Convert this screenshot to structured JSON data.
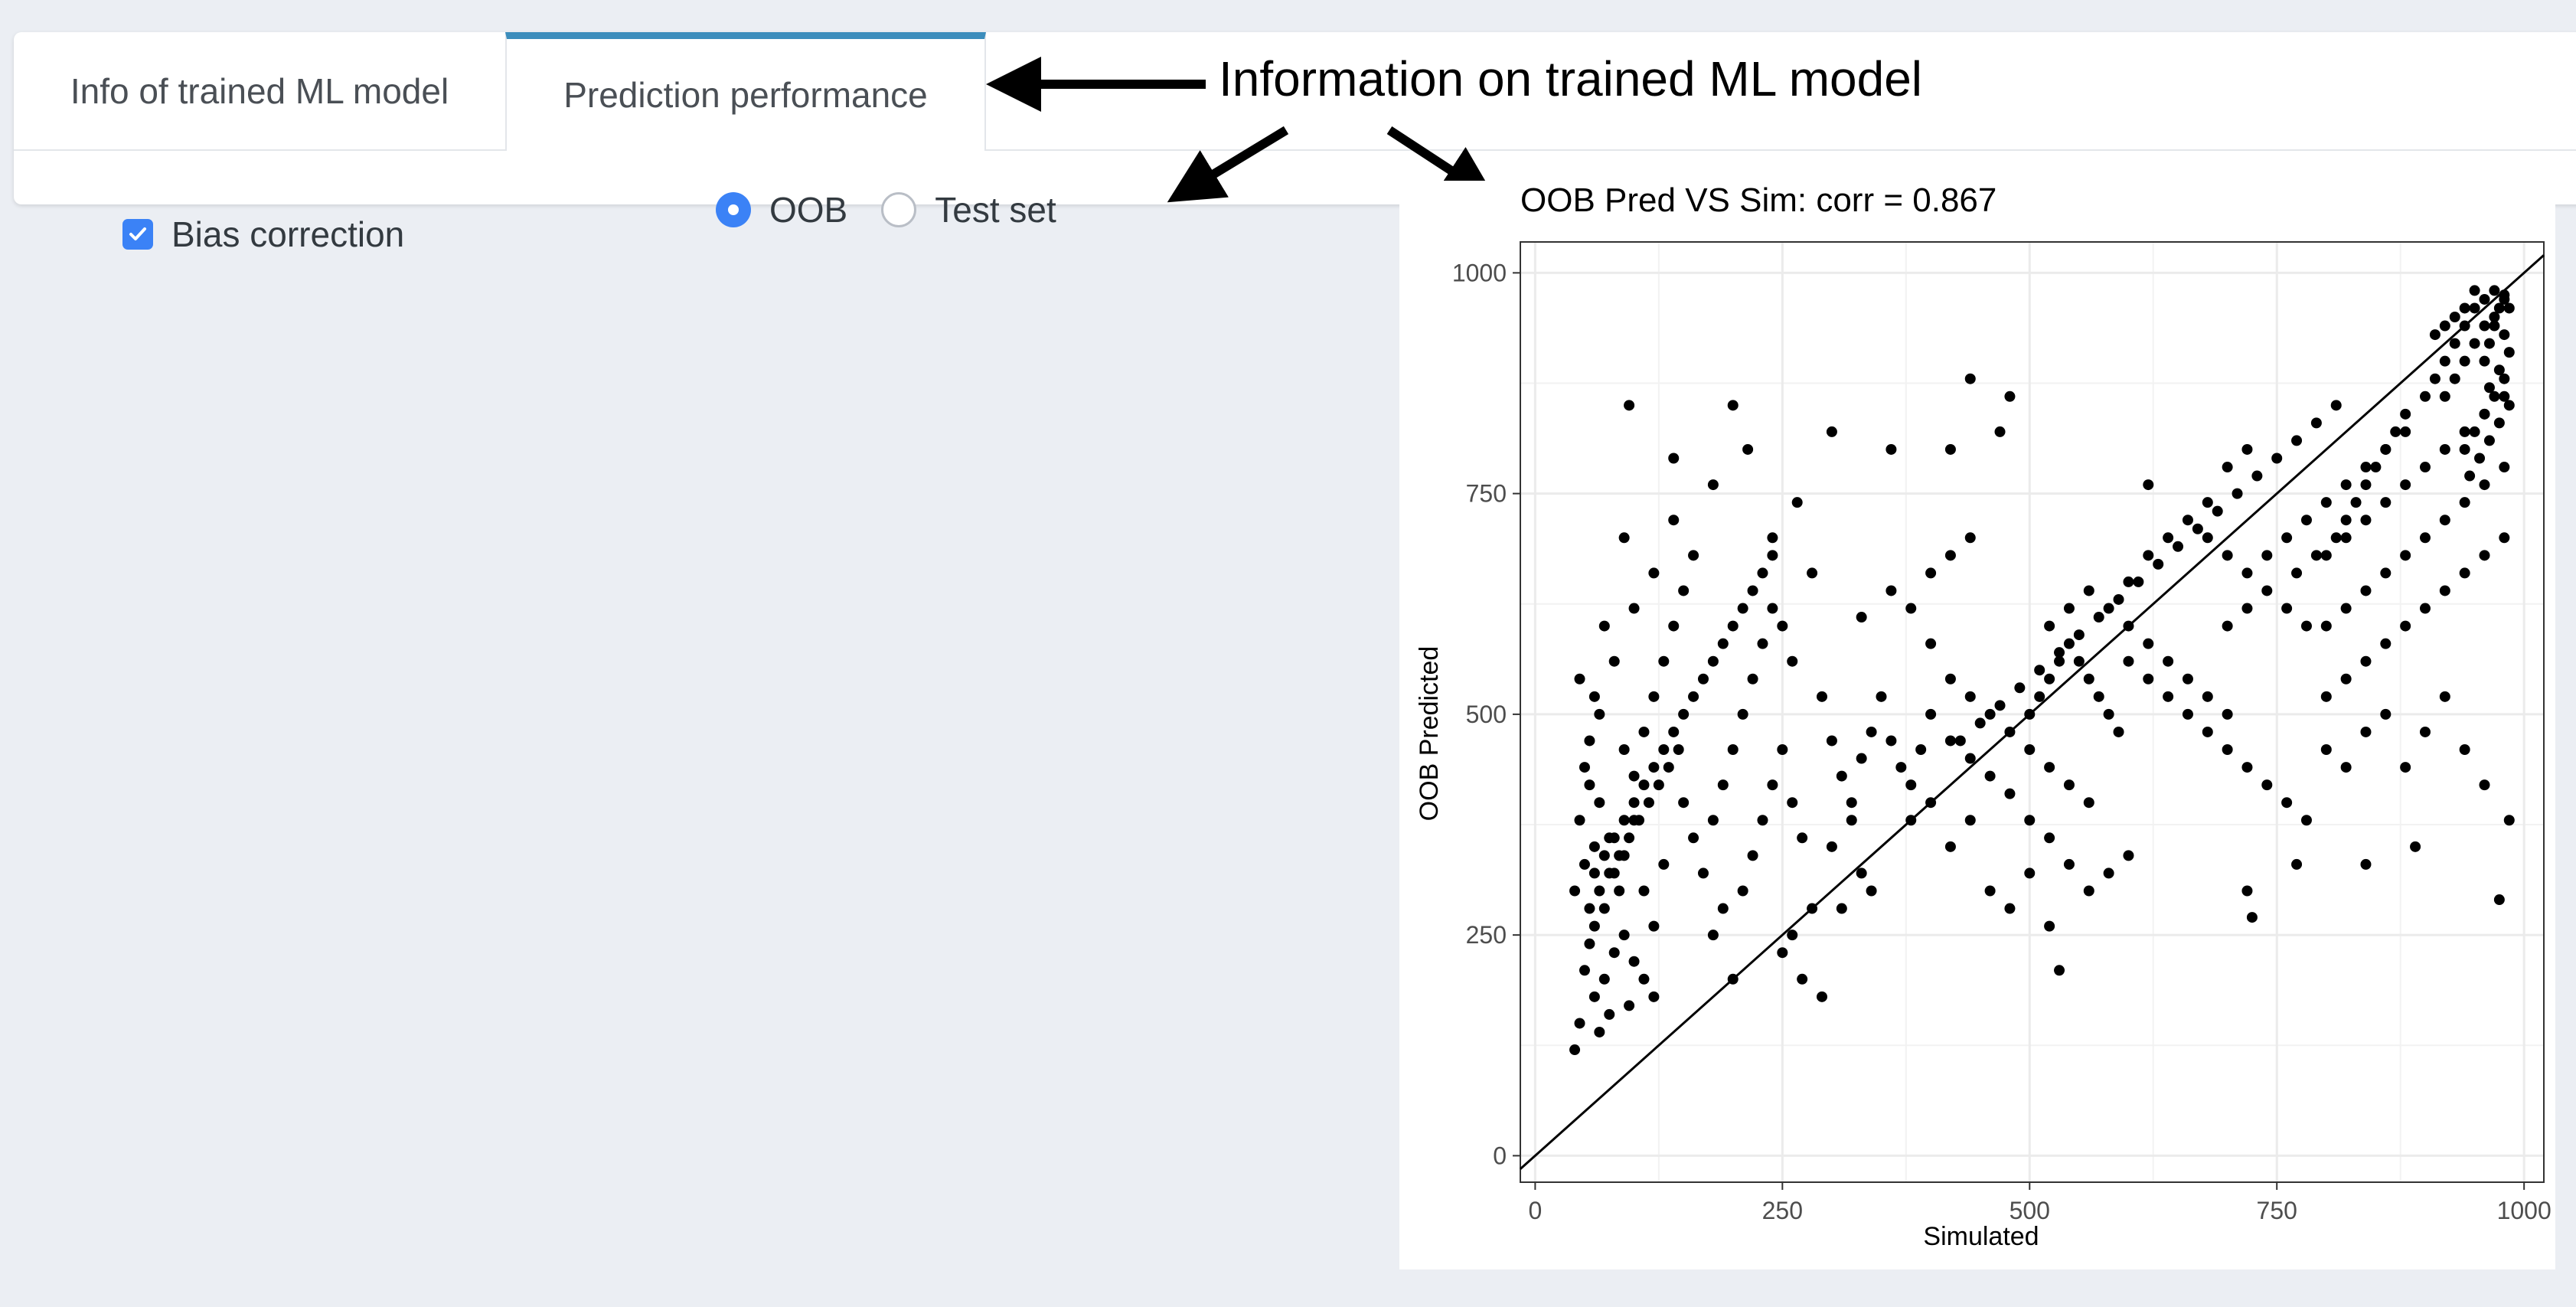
{
  "tabs": [
    {
      "label": "Info of trained ML model",
      "active": false
    },
    {
      "label": "Prediction performance",
      "active": true
    }
  ],
  "controls": {
    "bias_correction": {
      "label": "Bias correction",
      "checked": true
    },
    "radio": [
      {
        "label": "OOB",
        "selected": true
      },
      {
        "label": "Test set",
        "selected": false
      }
    ]
  },
  "annotation": {
    "text": "Information on trained ML model"
  },
  "colors": {
    "accent": "#3c8dbc",
    "control": "#3b82f6",
    "background": "#ebeef3"
  },
  "chart_data": {
    "type": "scatter",
    "title": "OOB Pred VS Sim: corr = 0.867",
    "xlabel": "Simulated",
    "ylabel": "OOB Predicted",
    "xlim": [
      -15,
      1020
    ],
    "ylim": [
      -30,
      1035
    ],
    "xticks": [
      0,
      250,
      500,
      750,
      1000
    ],
    "yticks": [
      0,
      250,
      500,
      750,
      1000
    ],
    "grid": true,
    "reference_line": "y = x",
    "point_color": "#000000",
    "points": [
      [
        40,
        120
      ],
      [
        45,
        150
      ],
      [
        50,
        210
      ],
      [
        55,
        240
      ],
      [
        60,
        260
      ],
      [
        40,
        300
      ],
      [
        50,
        330
      ],
      [
        60,
        350
      ],
      [
        70,
        280
      ],
      [
        80,
        320
      ],
      [
        45,
        380
      ],
      [
        55,
        420
      ],
      [
        65,
        400
      ],
      [
        75,
        360
      ],
      [
        85,
        300
      ],
      [
        90,
        340
      ],
      [
        100,
        380
      ],
      [
        110,
        300
      ],
      [
        120,
        260
      ],
      [
        130,
        330
      ],
      [
        60,
        180
      ],
      [
        70,
        200
      ],
      [
        80,
        230
      ],
      [
        90,
        250
      ],
      [
        100,
        220
      ],
      [
        110,
        200
      ],
      [
        120,
        180
      ],
      [
        95,
        170
      ],
      [
        75,
        160
      ],
      [
        65,
        140
      ],
      [
        50,
        440
      ],
      [
        55,
        470
      ],
      [
        60,
        520
      ],
      [
        45,
        540
      ],
      [
        70,
        600
      ],
      [
        80,
        560
      ],
      [
        65,
        500
      ],
      [
        90,
        460
      ],
      [
        100,
        430
      ],
      [
        110,
        480
      ],
      [
        120,
        520
      ],
      [
        130,
        560
      ],
      [
        140,
        600
      ],
      [
        150,
        640
      ],
      [
        160,
        680
      ],
      [
        140,
        720
      ],
      [
        120,
        660
      ],
      [
        100,
        620
      ],
      [
        90,
        700
      ],
      [
        95,
        850
      ],
      [
        150,
        400
      ],
      [
        160,
        360
      ],
      [
        170,
        320
      ],
      [
        180,
        380
      ],
      [
        190,
        420
      ],
      [
        200,
        460
      ],
      [
        210,
        500
      ],
      [
        220,
        540
      ],
      [
        230,
        580
      ],
      [
        240,
        620
      ],
      [
        180,
        250
      ],
      [
        200,
        200
      ],
      [
        190,
        280
      ],
      [
        210,
        300
      ],
      [
        220,
        340
      ],
      [
        230,
        380
      ],
      [
        240,
        420
      ],
      [
        250,
        460
      ],
      [
        260,
        400
      ],
      [
        270,
        360
      ],
      [
        140,
        790
      ],
      [
        180,
        760
      ],
      [
        200,
        850
      ],
      [
        215,
        800
      ],
      [
        240,
        700
      ],
      [
        265,
        740
      ],
      [
        280,
        660
      ],
      [
        300,
        820
      ],
      [
        260,
        560
      ],
      [
        290,
        520
      ],
      [
        300,
        470
      ],
      [
        310,
        430
      ],
      [
        320,
        400
      ],
      [
        330,
        450
      ],
      [
        340,
        480
      ],
      [
        350,
        520
      ],
      [
        360,
        470
      ],
      [
        370,
        440
      ],
      [
        380,
        420
      ],
      [
        390,
        460
      ],
      [
        300,
        350
      ],
      [
        320,
        380
      ],
      [
        340,
        300
      ],
      [
        280,
        280
      ],
      [
        260,
        250
      ],
      [
        250,
        230
      ],
      [
        270,
        200
      ],
      [
        290,
        180
      ],
      [
        310,
        280
      ],
      [
        330,
        320
      ],
      [
        330,
        610
      ],
      [
        360,
        640
      ],
      [
        380,
        620
      ],
      [
        400,
        660
      ],
      [
        420,
        680
      ],
      [
        440,
        700
      ],
      [
        360,
        800
      ],
      [
        420,
        800
      ],
      [
        440,
        880
      ],
      [
        470,
        820
      ],
      [
        480,
        860
      ],
      [
        400,
        580
      ],
      [
        420,
        540
      ],
      [
        440,
        520
      ],
      [
        460,
        500
      ],
      [
        480,
        480
      ],
      [
        500,
        460
      ],
      [
        520,
        440
      ],
      [
        540,
        420
      ],
      [
        560,
        400
      ],
      [
        400,
        500
      ],
      [
        420,
        470
      ],
      [
        440,
        450
      ],
      [
        460,
        430
      ],
      [
        480,
        410
      ],
      [
        500,
        380
      ],
      [
        520,
        360
      ],
      [
        540,
        330
      ],
      [
        460,
        300
      ],
      [
        480,
        280
      ],
      [
        500,
        320
      ],
      [
        520,
        260
      ],
      [
        530,
        210
      ],
      [
        560,
        300
      ],
      [
        580,
        320
      ],
      [
        600,
        340
      ],
      [
        420,
        350
      ],
      [
        440,
        380
      ],
      [
        400,
        400
      ],
      [
        380,
        380
      ],
      [
        500,
        500
      ],
      [
        510,
        520
      ],
      [
        520,
        540
      ],
      [
        530,
        560
      ],
      [
        540,
        580
      ],
      [
        550,
        560
      ],
      [
        560,
        540
      ],
      [
        570,
        520
      ],
      [
        580,
        500
      ],
      [
        590,
        480
      ],
      [
        520,
        600
      ],
      [
        540,
        620
      ],
      [
        560,
        640
      ],
      [
        580,
        620
      ],
      [
        600,
        600
      ],
      [
        620,
        580
      ],
      [
        640,
        560
      ],
      [
        660,
        540
      ],
      [
        680,
        520
      ],
      [
        700,
        500
      ],
      [
        600,
        650
      ],
      [
        620,
        680
      ],
      [
        640,
        700
      ],
      [
        660,
        720
      ],
      [
        680,
        700
      ],
      [
        700,
        680
      ],
      [
        720,
        660
      ],
      [
        740,
        640
      ],
      [
        760,
        620
      ],
      [
        780,
        600
      ],
      [
        600,
        560
      ],
      [
        620,
        540
      ],
      [
        640,
        520
      ],
      [
        660,
        500
      ],
      [
        680,
        480
      ],
      [
        700,
        460
      ],
      [
        720,
        440
      ],
      [
        740,
        420
      ],
      [
        760,
        400
      ],
      [
        780,
        380
      ],
      [
        620,
        760
      ],
      [
        680,
        740
      ],
      [
        700,
        780
      ],
      [
        720,
        800
      ],
      [
        720,
        300
      ],
      [
        725,
        270
      ],
      [
        770,
        330
      ],
      [
        840,
        330
      ],
      [
        890,
        350
      ],
      [
        975,
        290
      ],
      [
        700,
        600
      ],
      [
        720,
        620
      ],
      [
        740,
        680
      ],
      [
        760,
        700
      ],
      [
        780,
        720
      ],
      [
        800,
        740
      ],
      [
        820,
        760
      ],
      [
        840,
        780
      ],
      [
        860,
        800
      ],
      [
        880,
        820
      ],
      [
        800,
        680
      ],
      [
        820,
        700
      ],
      [
        840,
        720
      ],
      [
        860,
        740
      ],
      [
        880,
        760
      ],
      [
        900,
        780
      ],
      [
        920,
        800
      ],
      [
        940,
        820
      ],
      [
        960,
        840
      ],
      [
        980,
        860
      ],
      [
        800,
        600
      ],
      [
        820,
        620
      ],
      [
        840,
        640
      ],
      [
        860,
        660
      ],
      [
        880,
        680
      ],
      [
        900,
        700
      ],
      [
        920,
        720
      ],
      [
        940,
        740
      ],
      [
        960,
        760
      ],
      [
        980,
        780
      ],
      [
        800,
        520
      ],
      [
        820,
        540
      ],
      [
        840,
        560
      ],
      [
        860,
        580
      ],
      [
        880,
        600
      ],
      [
        900,
        620
      ],
      [
        920,
        640
      ],
      [
        940,
        660
      ],
      [
        960,
        680
      ],
      [
        980,
        700
      ],
      [
        800,
        460
      ],
      [
        820,
        440
      ],
      [
        840,
        480
      ],
      [
        860,
        500
      ],
      [
        880,
        440
      ],
      [
        900,
        480
      ],
      [
        920,
        520
      ],
      [
        940,
        460
      ],
      [
        960,
        420
      ],
      [
        985,
        380
      ],
      [
        900,
        860
      ],
      [
        910,
        880
      ],
      [
        920,
        900
      ],
      [
        930,
        920
      ],
      [
        940,
        940
      ],
      [
        950,
        960
      ],
      [
        960,
        970
      ],
      [
        970,
        980
      ],
      [
        980,
        975
      ],
      [
        985,
        960
      ],
      [
        920,
        860
      ],
      [
        930,
        880
      ],
      [
        940,
        900
      ],
      [
        950,
        920
      ],
      [
        960,
        940
      ],
      [
        970,
        950
      ],
      [
        980,
        930
      ],
      [
        985,
        910
      ],
      [
        975,
        890
      ],
      [
        965,
        870
      ],
      [
        940,
        800
      ],
      [
        950,
        820
      ],
      [
        960,
        840
      ],
      [
        970,
        860
      ],
      [
        980,
        880
      ],
      [
        985,
        850
      ],
      [
        975,
        830
      ],
      [
        965,
        810
      ],
      [
        955,
        790
      ],
      [
        945,
        770
      ],
      [
        880,
        840
      ],
      [
        870,
        820
      ],
      [
        860,
        800
      ],
      [
        850,
        780
      ],
      [
        840,
        760
      ],
      [
        830,
        740
      ],
      [
        820,
        720
      ],
      [
        810,
        700
      ],
      [
        790,
        680
      ],
      [
        770,
        660
      ],
      [
        960,
        900
      ],
      [
        965,
        920
      ],
      [
        970,
        940
      ],
      [
        975,
        960
      ],
      [
        980,
        970
      ],
      [
        950,
        980
      ],
      [
        940,
        960
      ],
      [
        930,
        950
      ],
      [
        920,
        940
      ],
      [
        910,
        930
      ],
      [
        60,
        320
      ],
      [
        70,
        340
      ],
      [
        80,
        360
      ],
      [
        90,
        380
      ],
      [
        100,
        400
      ],
      [
        110,
        420
      ],
      [
        120,
        440
      ],
      [
        130,
        460
      ],
      [
        140,
        480
      ],
      [
        150,
        500
      ],
      [
        55,
        280
      ],
      [
        65,
        300
      ],
      [
        75,
        320
      ],
      [
        85,
        340
      ],
      [
        95,
        360
      ],
      [
        105,
        380
      ],
      [
        115,
        400
      ],
      [
        125,
        420
      ],
      [
        135,
        440
      ],
      [
        145,
        460
      ],
      [
        160,
        520
      ],
      [
        170,
        540
      ],
      [
        180,
        560
      ],
      [
        190,
        580
      ],
      [
        200,
        600
      ],
      [
        210,
        620
      ],
      [
        220,
        640
      ],
      [
        230,
        660
      ],
      [
        240,
        680
      ],
      [
        250,
        600
      ],
      [
        430,
        470
      ],
      [
        450,
        490
      ],
      [
        470,
        510
      ],
      [
        490,
        530
      ],
      [
        510,
        550
      ],
      [
        530,
        570
      ],
      [
        550,
        590
      ],
      [
        570,
        610
      ],
      [
        590,
        630
      ],
      [
        610,
        650
      ],
      [
        630,
        670
      ],
      [
        650,
        690
      ],
      [
        670,
        710
      ],
      [
        690,
        730
      ],
      [
        710,
        750
      ],
      [
        730,
        770
      ],
      [
        750,
        790
      ],
      [
        770,
        810
      ],
      [
        790,
        830
      ],
      [
        810,
        850
      ]
    ]
  }
}
